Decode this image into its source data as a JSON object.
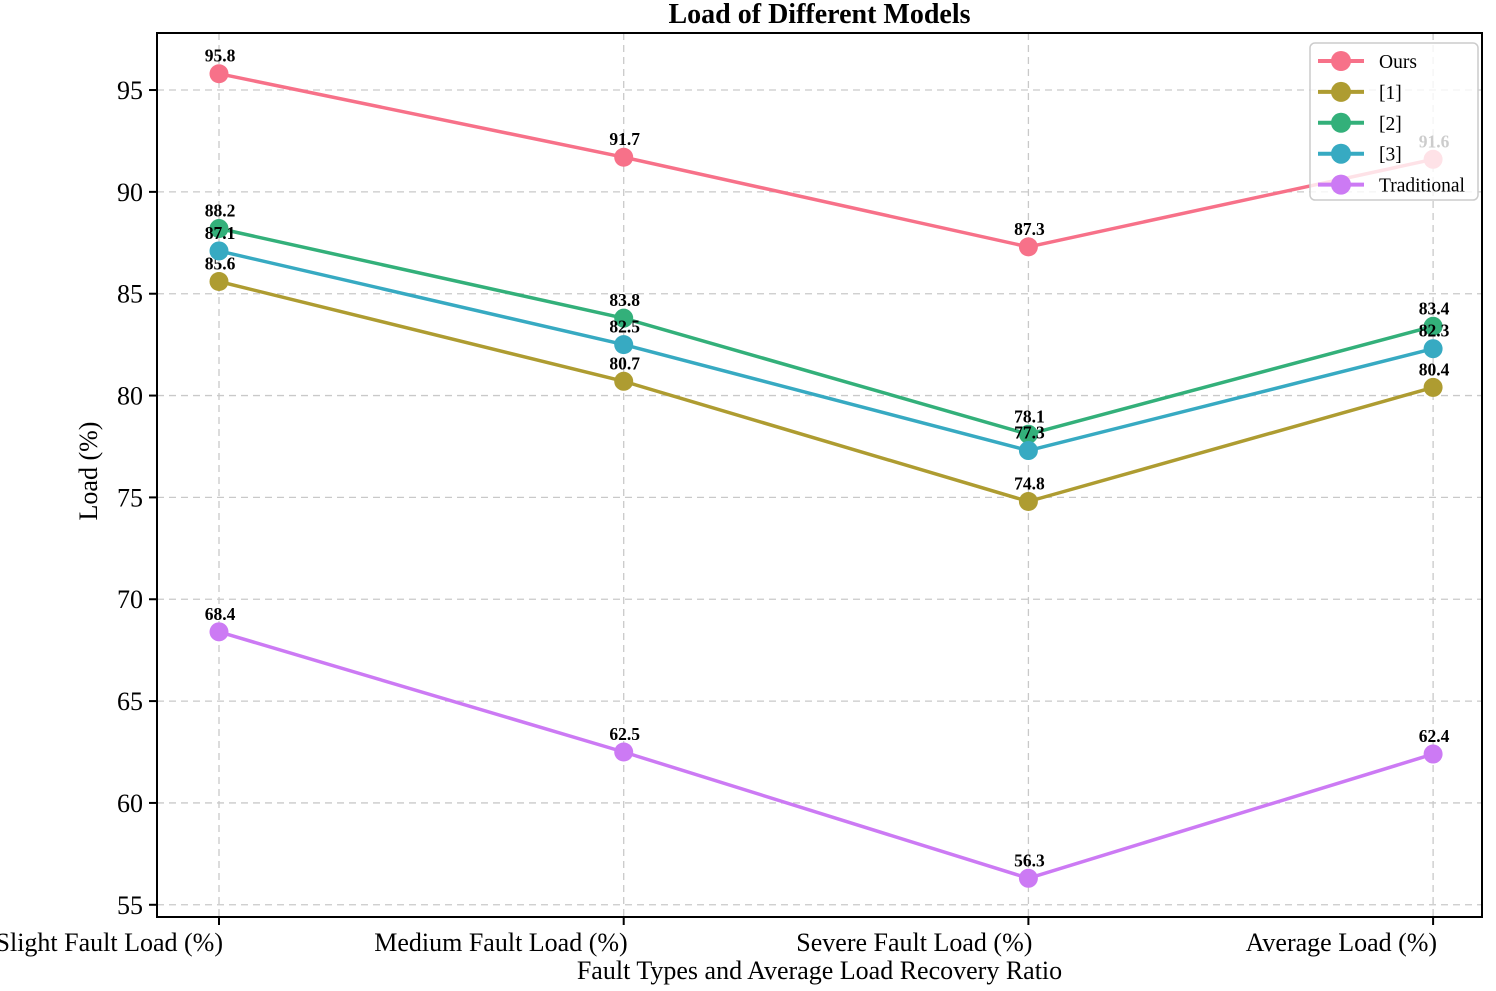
{
  "page": {
    "title": "Load of Different Models"
  },
  "chart_data": {
    "type": "line",
    "title": "Load of Different Models",
    "xlabel": "Fault Types and Average Load Recovery Ratio",
    "ylabel": "Load (%)",
    "categories": [
      "Slight Fault Load (%)",
      "Medium Fault Load (%)",
      "Severe Fault Load (%)",
      "Average Load (%)"
    ],
    "yticks": [
      55,
      60,
      65,
      70,
      75,
      80,
      85,
      90,
      95
    ],
    "ylim": [
      54.4,
      97.8
    ],
    "grid": {
      "show": true,
      "style": "dashed",
      "which": "both",
      "color": "#c9c9c9"
    },
    "value_labels": true,
    "legend": {
      "position": "upper-right",
      "entries": [
        "Ours",
        "[1]",
        "[2]",
        "[3]",
        "Traditional"
      ]
    },
    "series": [
      {
        "name": "Ours",
        "color": "#f77189",
        "values": [
          95.8,
          91.7,
          87.3,
          91.6
        ]
      },
      {
        "name": "[1]",
        "color": "#ae9c31",
        "values": [
          85.6,
          80.7,
          74.8,
          80.4
        ]
      },
      {
        "name": "[2]",
        "color": "#33b07a",
        "values": [
          88.2,
          83.8,
          78.1,
          83.4
        ]
      },
      {
        "name": "[3]",
        "color": "#37aac2",
        "values": [
          87.1,
          82.5,
          77.3,
          82.3
        ]
      },
      {
        "name": "Traditional",
        "color": "#cc7af4",
        "values": [
          68.4,
          62.5,
          56.3,
          62.4
        ]
      }
    ]
  }
}
